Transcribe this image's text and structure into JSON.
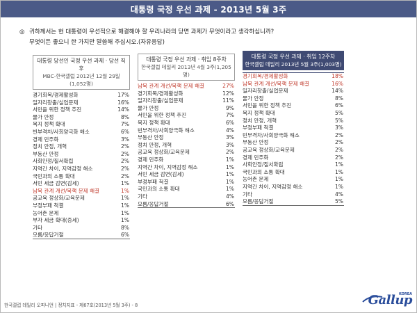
{
  "title": "대통령 국정 우선 과제 - 2013년 5월 3주",
  "question": {
    "marker": "◎",
    "line1": "귀하께서는 현 대통령이 우선적으로 해결해야 할 우리나라의 당면 과제가 무엇이라고 생각하십니까?",
    "line2": "무엇이든 좋으니 한 가지만 말씀해 주십시오.(자유응답)"
  },
  "columns": [
    {
      "header1": "대통령 당선인 국정 우선 과제 · 당선 직후",
      "header2": "MBC-한국갤럽 2012년 12월 29일(1,052명)",
      "items": [
        {
          "label": "경기회복/경제활성화",
          "value": "17%",
          "red": false
        },
        {
          "label": "일자리창출/실업문제",
          "value": "16%",
          "red": false
        },
        {
          "label": "서민을 위한 정책 추진",
          "value": "14%",
          "red": false
        },
        {
          "label": "물가 안정",
          "value": "8%",
          "red": false
        },
        {
          "label": "복지 정책 확대",
          "value": "7%",
          "red": false
        },
        {
          "label": "빈부격차/사회양극화 해소",
          "value": "6%",
          "red": false
        },
        {
          "label": "경제 민주화",
          "value": "3%",
          "red": false
        },
        {
          "label": "정치 안정, 개혁",
          "value": "2%",
          "red": false
        },
        {
          "label": "부동산 안정",
          "value": "2%",
          "red": false
        },
        {
          "label": "사회안정/질서확립",
          "value": "2%",
          "red": false
        },
        {
          "label": "지역간 차이, 지역감정 해소",
          "value": "2%",
          "red": false
        },
        {
          "label": "국민과의 소통 확대",
          "value": "2%",
          "red": false
        },
        {
          "label": "서민 세금 감면(감세)",
          "value": "1%",
          "red": false
        },
        {
          "label": "남북 관계 개선/북핵 문제 해결",
          "value": "1%",
          "red": true
        },
        {
          "label": "공교육 정상화/교육문제",
          "value": "1%",
          "red": false
        },
        {
          "label": "부정부패 척결",
          "value": "1%",
          "red": false
        },
        {
          "label": "농어촌 문제",
          "value": "1%",
          "red": false
        },
        {
          "label": "부자 세금 확대(증세)",
          "value": "1%",
          "red": false
        },
        {
          "label": "기타",
          "value": "8%",
          "red": false
        },
        {
          "label": "모름/응답거절",
          "value": "6%",
          "red": false
        }
      ]
    },
    {
      "header1": "대통령 국정 우선 과제 · 취임 8주차",
      "header2": "한국갤럽 데일리 2013년 4월 3주(1,205명)",
      "items": [
        {
          "label": "남북 관계 개선/북핵 문제 해결",
          "value": "27%",
          "red": true
        },
        {
          "label": "경기회복/경제활성화",
          "value": "12%",
          "red": false
        },
        {
          "label": "일자리창출/실업문제",
          "value": "11%",
          "red": false
        },
        {
          "label": "물가 안정",
          "value": "9%",
          "red": false
        },
        {
          "label": "서민을 위한 정책 추진",
          "value": "7%",
          "red": false
        },
        {
          "label": "복지 정책 확대",
          "value": "6%",
          "red": false
        },
        {
          "label": "빈부격차/사회양극화 해소",
          "value": "4%",
          "red": false
        },
        {
          "label": "부동산 안정",
          "value": "3%",
          "red": false
        },
        {
          "label": "정치 안정, 개혁",
          "value": "3%",
          "red": false
        },
        {
          "label": "공교육 정상화/교육문제",
          "value": "2%",
          "red": false
        },
        {
          "label": "경제 민주화",
          "value": "1%",
          "red": false
        },
        {
          "label": "지역간 차이, 지역감정 해소",
          "value": "1%",
          "red": false
        },
        {
          "label": "서민 세금 감면(감세)",
          "value": "1%",
          "red": false
        },
        {
          "label": "부정부패 척결",
          "value": "1%",
          "red": false
        },
        {
          "label": "국민과의 소통 확대",
          "value": "1%",
          "red": false
        },
        {
          "label": "기타",
          "value": "4%",
          "red": false
        },
        {
          "label": "모름/응답거절",
          "value": "6%",
          "red": false
        }
      ]
    },
    {
      "header1": "대통령 국정 우선 과제 · 취임 12주차",
      "header2": "한국갤럽 데일리 2013년 5월 3주(1,003명)",
      "items": [
        {
          "label": "경기회복/경제활성화",
          "value": "18%",
          "red": true
        },
        {
          "label": "남북 관계 개선/북핵 문제 해결",
          "value": "16%",
          "red": true
        },
        {
          "label": "일자리창출/실업문제",
          "value": "14%",
          "red": false
        },
        {
          "label": "물가 안정",
          "value": "8%",
          "red": false
        },
        {
          "label": "서민을 위한 정책 추진",
          "value": "6%",
          "red": false
        },
        {
          "label": "복지 정책 확대",
          "value": "5%",
          "red": false
        },
        {
          "label": "정치 안정, 개혁",
          "value": "5%",
          "red": false
        },
        {
          "label": "부정부패 척결",
          "value": "3%",
          "red": false
        },
        {
          "label": "빈부격차/사회양극화 해소",
          "value": "2%",
          "red": false
        },
        {
          "label": "부동산 안정",
          "value": "2%",
          "red": false
        },
        {
          "label": "공교육 정상화/교육문제",
          "value": "2%",
          "red": false
        },
        {
          "label": "경제 민주화",
          "value": "2%",
          "red": false
        },
        {
          "label": "사회안정/질서확립",
          "value": "1%",
          "red": false
        },
        {
          "label": "국민과의 소통 확대",
          "value": "1%",
          "red": false
        },
        {
          "label": "농어촌 문제",
          "value": "1%",
          "red": false
        },
        {
          "label": "지역간 차이, 지역감정 해소",
          "value": "1%",
          "red": false
        },
        {
          "label": "기타",
          "value": "4%",
          "red": false
        },
        {
          "label": "모름/응답거절",
          "value": "5%",
          "red": false
        }
      ]
    }
  ],
  "footer": "한국갤럽 데일리 오피니언 | 정치지표 - 제67호(2013년 5월 3주) - 8",
  "logo": {
    "brand": "Gallup",
    "sub": "KOREA"
  },
  "colors": {
    "title_bg": "#4b5a87",
    "dark_header": "#3f4a73",
    "highlight": "#c0392b",
    "logo": "#2a4d9b"
  }
}
